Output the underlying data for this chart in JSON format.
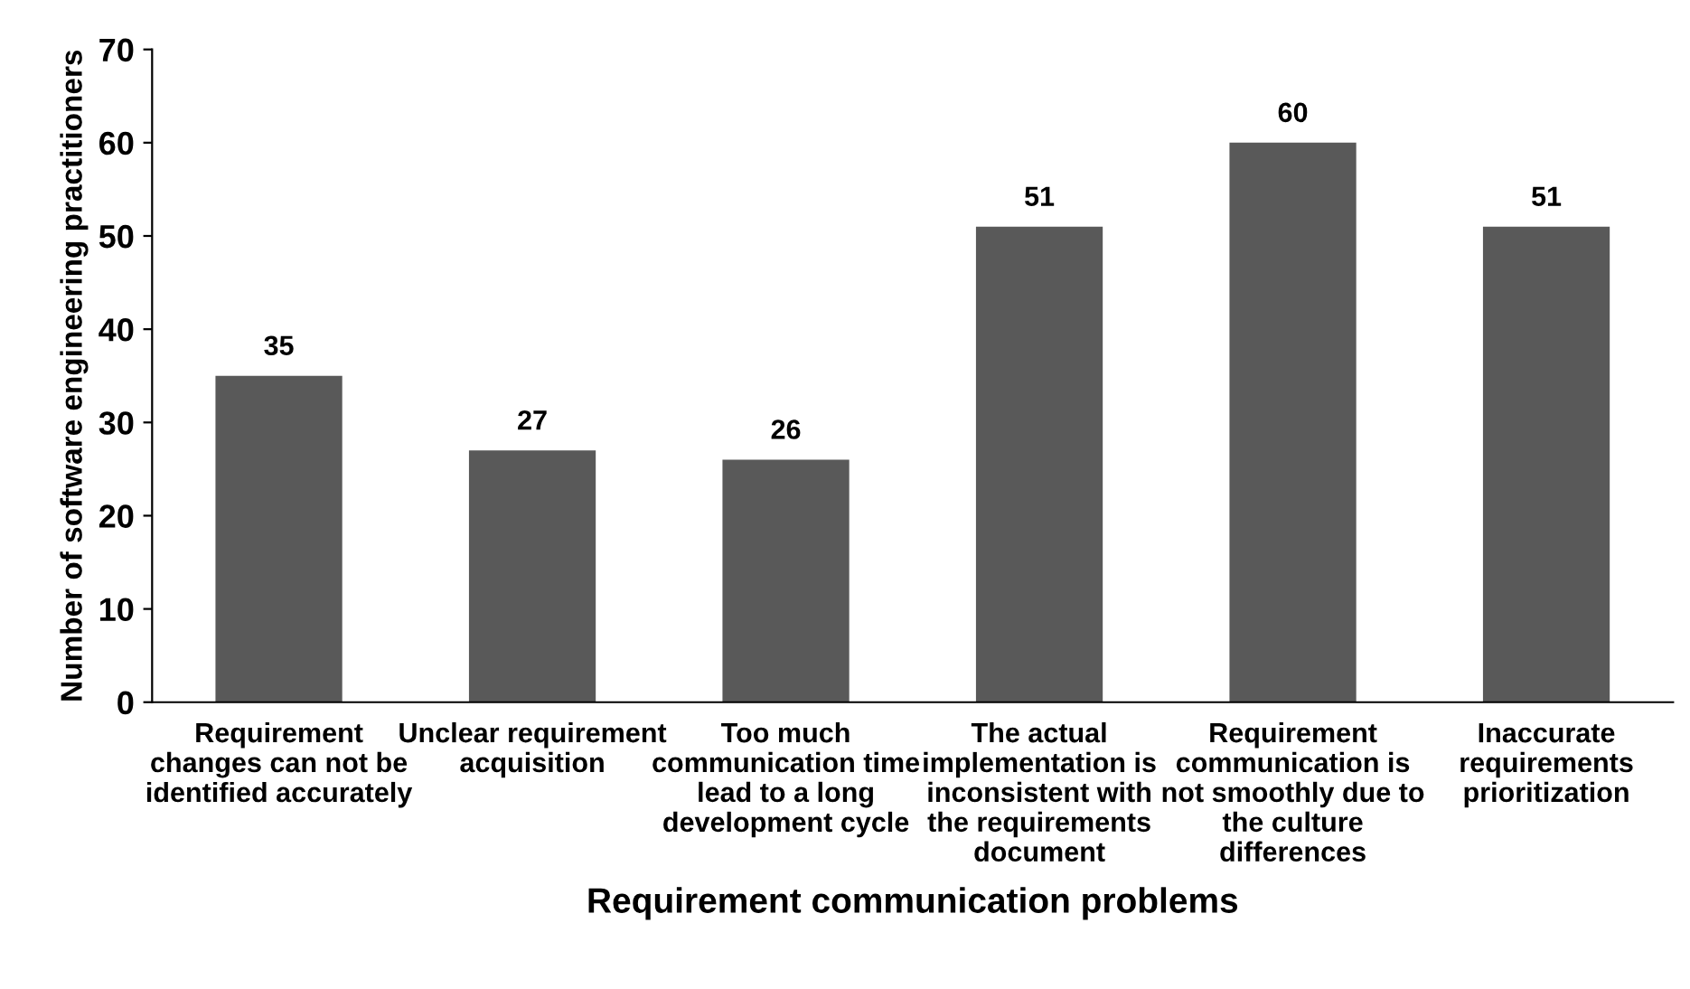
{
  "chart_data": {
    "type": "bar",
    "xlabel": "Requirement communication problems",
    "ylabel": "Number of software engineering practitioners",
    "categories": [
      "Requirement\nchanges can not be\nidentified accurately",
      "Unclear requirement\nacquisition",
      "Too much\ncommunication time\nlead to a long\ndevelopment cycle",
      "The actual\nimplementation is\ninconsistent with\nthe requirements\ndocument",
      "Requirement\ncommunication is\nnot smoothly due to\nthe culture\ndifferences",
      "Inaccurate\nrequirements\nprioritization"
    ],
    "values": [
      35,
      27,
      26,
      51,
      60,
      51
    ],
    "color": "#595959",
    "ylim": [
      0,
      70
    ],
    "yticks": [
      0,
      10,
      20,
      30,
      40,
      50,
      60,
      70
    ],
    "data_labels": true,
    "grid": false,
    "legend": false
  }
}
